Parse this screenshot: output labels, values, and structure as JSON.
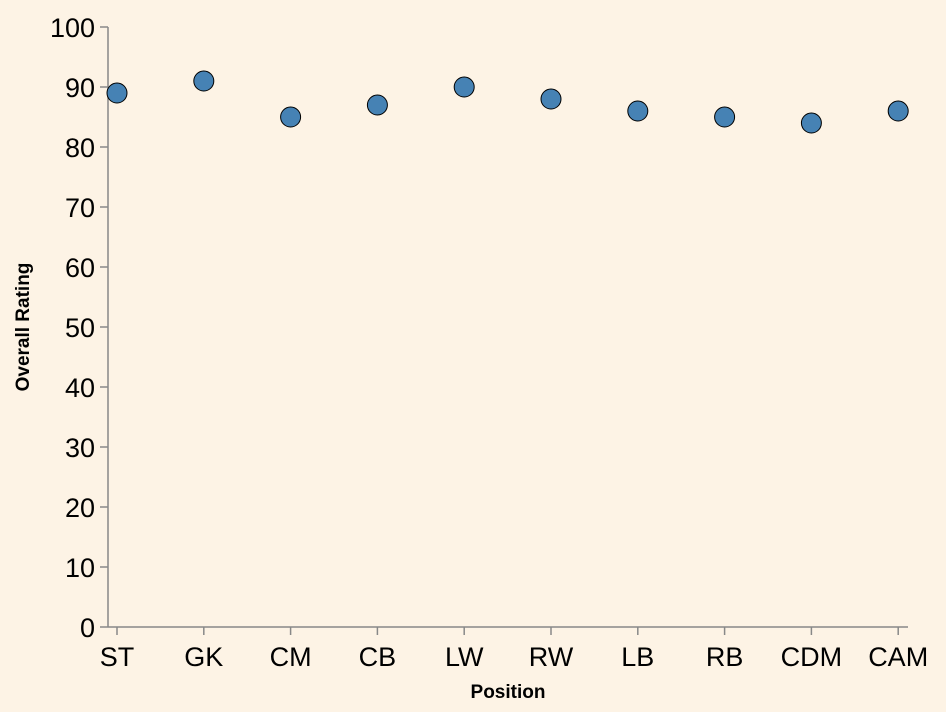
{
  "chart_data": {
    "type": "scatter",
    "title": "",
    "xlabel": "Position",
    "ylabel": "Overall Rating",
    "categories": [
      "ST",
      "GK",
      "CM",
      "CB",
      "LW",
      "RW",
      "LB",
      "RB",
      "CDM",
      "CAM"
    ],
    "values": [
      89,
      91,
      85,
      87,
      90,
      88,
      86,
      85,
      84,
      86
    ],
    "ylim": [
      0,
      100
    ],
    "yticks": [
      "0",
      "10",
      "20",
      "30",
      "40",
      "50",
      "60",
      "70",
      "80",
      "90",
      "100"
    ],
    "grid": false,
    "legend": "none",
    "point_color": "#4682b4",
    "background_color": "#fdf3e5"
  }
}
